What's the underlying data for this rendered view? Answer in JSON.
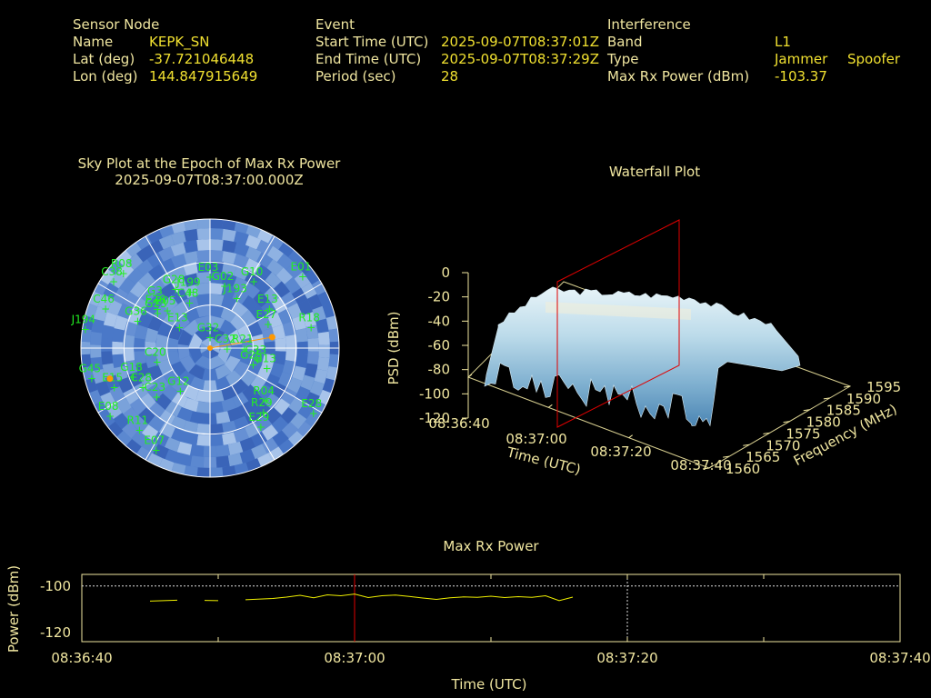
{
  "header": {
    "sensor": {
      "title": "Sensor Node",
      "name_label": "Name",
      "name": "KEPK_SN",
      "lat_label": "Lat (deg)",
      "lat": "-37.721046448",
      "lon_label": "Lon (deg)",
      "lon": "144.847915649"
    },
    "event": {
      "title": "Event",
      "start_label": "Start Time (UTC)",
      "start": "2025-09-07T08:37:01Z",
      "end_label": "End Time (UTC)",
      "end": "2025-09-07T08:37:29Z",
      "period_label": "Period (sec)",
      "period": "28"
    },
    "interference": {
      "title": "Interference",
      "band_label": "Band",
      "band": "L1",
      "type_label": "Type",
      "type_a": "Jammer",
      "type_b": "Spoofer",
      "power_label": "Max Rx Power (dBm)",
      "power": "-103.37"
    }
  },
  "colors": {
    "text": "#f0e6a0",
    "value": "#f0e030",
    "sat": "#22ee22",
    "marker": "#ff9900",
    "cursor": "#e00000",
    "line": "#f0f000",
    "sky_fill": "#4a78c8",
    "sky_light": "#8fb2e2"
  },
  "chart_data": [
    {
      "type": "scatter",
      "title": "Sky Plot at the Epoch of Max Rx Power",
      "subtitle": "2025-09-07T08:37:00.000Z",
      "projection": "polar",
      "satellites": [
        {
          "id": "G32",
          "az": 0,
          "el": 82
        },
        {
          "id": "C48",
          "az": 336,
          "el": 55
        },
        {
          "id": "J199",
          "az": 341,
          "el": 48
        },
        {
          "id": "R08",
          "az": 311,
          "el": 10
        },
        {
          "id": "C38",
          "az": 305,
          "el": 8
        },
        {
          "id": "G3",
          "az": 312,
          "el": 40
        },
        {
          "id": "G28",
          "az": 330,
          "el": 42
        },
        {
          "id": "G23",
          "az": 304,
          "el": 46
        },
        {
          "id": "G36",
          "az": 291,
          "el": 36
        },
        {
          "id": "E03",
          "az": 0,
          "el": 40
        },
        {
          "id": "G02",
          "az": 13,
          "el": 45
        },
        {
          "id": "J193",
          "az": 28,
          "el": 50
        },
        {
          "id": "G10",
          "az": 33,
          "el": 34
        },
        {
          "id": "E01",
          "az": 52,
          "el": 8
        },
        {
          "id": "E13",
          "az": 56,
          "el": 40
        },
        {
          "id": "E27",
          "az": 67,
          "el": 46
        },
        {
          "id": "R18",
          "az": 78,
          "el": 18
        },
        {
          "id": "C46",
          "az": 291,
          "el": 12
        },
        {
          "id": "E05",
          "az": 312,
          "el": 50
        },
        {
          "id": "E26",
          "az": 307,
          "el": 44
        },
        {
          "id": "E13",
          "az": 305,
          "el": 64
        },
        {
          "id": "J194",
          "az": 279,
          "el": 2
        },
        {
          "id": "G45",
          "az": 256,
          "el": 5
        },
        {
          "id": "E15",
          "az": 248,
          "el": 18
        },
        {
          "id": "G18",
          "az": 250,
          "el": 33
        },
        {
          "id": "C20",
          "az": 256,
          "el": 52
        },
        {
          "id": "C23",
          "az": 228,
          "el": 40
        },
        {
          "id": "C28",
          "az": 240,
          "el": 36
        },
        {
          "id": "G12",
          "az": 215,
          "el": 54
        },
        {
          "id": "E08",
          "az": 236,
          "el": 6
        },
        {
          "id": "R11",
          "az": 221,
          "el": 15
        },
        {
          "id": "E07",
          "az": 208,
          "el": 10
        },
        {
          "id": "R04",
          "az": 133,
          "el": 37
        },
        {
          "id": "G13",
          "az": 109,
          "el": 48
        },
        {
          "id": "C33",
          "az": 103,
          "el": 56
        },
        {
          "id": "R21",
          "az": 90,
          "el": 66
        },
        {
          "id": "C32",
          "az": 90,
          "el": 78
        },
        {
          "id": "E29",
          "az": 147,
          "el": 25
        },
        {
          "id": "R29",
          "az": 140,
          "el": 32
        },
        {
          "id": "E28",
          "az": 122,
          "el": 5
        },
        {
          "id": "G25",
          "az": 110,
          "el": 58
        }
      ],
      "markers": [
        {
          "az": 80,
          "el": 46
        },
        {
          "az": 253,
          "el": 17
        }
      ]
    },
    {
      "type": "surface",
      "title": "Waterfall Plot",
      "xlabel": "Time (UTC)",
      "ylabel": "Frequency (MHz)",
      "zlabel": "PSD (dBm)",
      "x_ticks": [
        "08:36:40",
        "08:37:00",
        "08:37:20",
        "08:37:40"
      ],
      "y_ticks": [
        "1560",
        "1565",
        "1570",
        "1575",
        "1580",
        "1585",
        "1590",
        "1595"
      ],
      "z_ticks": [
        "0",
        "-20",
        "-40",
        "-60",
        "-80",
        "-100",
        "-120"
      ],
      "xlim": [
        "08:36:40",
        "08:37:40"
      ],
      "ylim": [
        1560,
        1595
      ],
      "zlim": [
        -120,
        0
      ],
      "plateau_psd": -62,
      "noise_floor_psd": -88,
      "band_mhz": [
        1562,
        1590
      ],
      "epoch_plane": "08:37:00"
    },
    {
      "type": "line",
      "title": "Max Rx Power",
      "xlabel": "Time (UTC)",
      "ylabel": "Power (dBm)",
      "x_ticks": [
        "08:36:40",
        "08:37:00",
        "08:37:20",
        "08:37:40"
      ],
      "y_ticks": [
        "-100",
        "-120"
      ],
      "ylim": [
        -124,
        -95
      ],
      "cursor": "08:37:00",
      "points": [
        [
          5,
          -106.5
        ],
        [
          7,
          -106.1
        ],
        [
          null,
          null
        ],
        [
          9,
          -106.2
        ],
        [
          10,
          -106.3
        ],
        [
          null,
          null
        ],
        [
          12,
          -105.9
        ],
        [
          14,
          -105.4
        ],
        [
          15,
          -104.8
        ],
        [
          16,
          -104.0
        ],
        [
          17,
          -105.1
        ],
        [
          18,
          -103.8
        ],
        [
          19,
          -104.2
        ],
        [
          20,
          -103.5
        ],
        [
          21,
          -105.0
        ],
        [
          22,
          -104.2
        ],
        [
          23,
          -103.9
        ],
        [
          24,
          -104.5
        ],
        [
          25,
          -105.2
        ],
        [
          26,
          -105.8
        ],
        [
          27,
          -105.1
        ],
        [
          28,
          -104.7
        ],
        [
          29,
          -104.9
        ],
        [
          30,
          -104.4
        ],
        [
          31,
          -105.0
        ],
        [
          32,
          -104.6
        ],
        [
          33,
          -104.9
        ],
        [
          34,
          -104.2
        ],
        [
          35,
          -106.3
        ],
        [
          36,
          -104.8
        ]
      ]
    }
  ]
}
